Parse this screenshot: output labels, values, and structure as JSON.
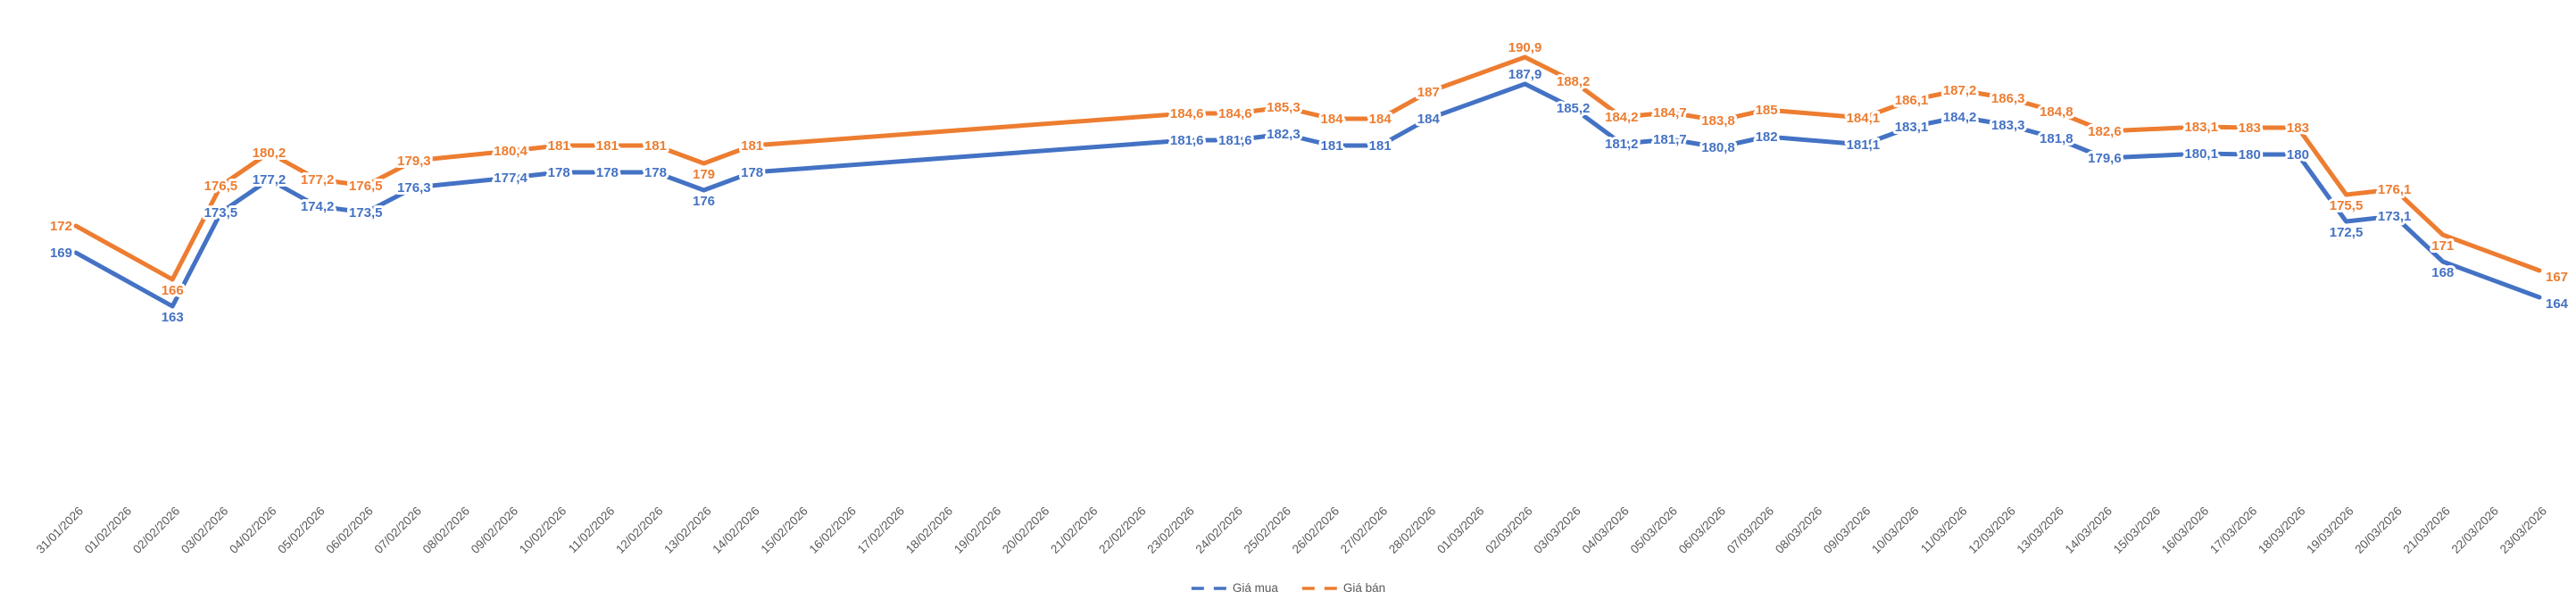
{
  "page": {
    "background": "#ffffff"
  },
  "chart_data": {
    "type": "line",
    "title": "",
    "xlabel": "",
    "ylabel": "",
    "grid": false,
    "legend_position": "bottom",
    "connect_nulls": true,
    "decimal_separator": ",",
    "axis_label_color": "#595959",
    "x": [
      "31/01/2026",
      "01/02/2026",
      "02/02/2026",
      "03/02/2026",
      "04/02/2026",
      "05/02/2026",
      "06/02/2026",
      "07/02/2026",
      "08/02/2026",
      "09/02/2026",
      "10/02/2026",
      "11/02/2026",
      "12/02/2026",
      "13/02/2026",
      "14/02/2026",
      "15/02/2026",
      "16/02/2026",
      "17/02/2026",
      "18/02/2026",
      "19/02/2026",
      "20/02/2026",
      "21/02/2026",
      "22/02/2026",
      "23/02/2026",
      "24/02/2026",
      "25/02/2026",
      "26/02/2026",
      "27/02/2026",
      "28/02/2026",
      "01/03/2026",
      "02/03/2026",
      "03/03/2026",
      "04/03/2026",
      "05/03/2026",
      "06/03/2026",
      "07/03/2026",
      "08/03/2026",
      "09/03/2026",
      "10/03/2026",
      "11/03/2026",
      "12/03/2026",
      "13/03/2026",
      "14/03/2026",
      "15/03/2026",
      "16/03/2026",
      "17/03/2026",
      "18/03/2026",
      "19/03/2026",
      "20/03/2026",
      "21/03/2026",
      "22/03/2026",
      "23/03/2026"
    ],
    "series": [
      {
        "name": "Giá mua",
        "color": "#4472C4",
        "values": [
          169,
          null,
          163,
          173.5,
          177.2,
          174.2,
          173.5,
          176.3,
          null,
          177.4,
          178,
          178,
          178,
          176,
          178,
          null,
          null,
          null,
          null,
          null,
          null,
          null,
          null,
          181.6,
          181.6,
          182.3,
          181,
          181,
          184,
          null,
          187.9,
          185.2,
          181.2,
          181.7,
          180.8,
          182,
          null,
          181.1,
          183.1,
          184.2,
          183.3,
          181.8,
          179.6,
          null,
          180.1,
          180,
          180,
          172.5,
          173.1,
          168,
          null,
          164
        ]
      },
      {
        "name": "Giá bán",
        "color": "#ED7D31",
        "values": [
          172,
          null,
          166,
          176.5,
          180.2,
          177.2,
          176.5,
          179.3,
          null,
          180.4,
          181,
          181,
          181,
          179,
          181,
          null,
          null,
          null,
          null,
          null,
          null,
          null,
          null,
          184.6,
          184.6,
          185.3,
          184,
          184,
          187,
          null,
          190.9,
          188.2,
          184.2,
          184.7,
          183.8,
          185,
          null,
          184.1,
          186.1,
          187.2,
          186.3,
          184.8,
          182.6,
          null,
          183.1,
          183,
          183,
          175.5,
          176.1,
          171,
          null,
          167
        ]
      }
    ]
  }
}
